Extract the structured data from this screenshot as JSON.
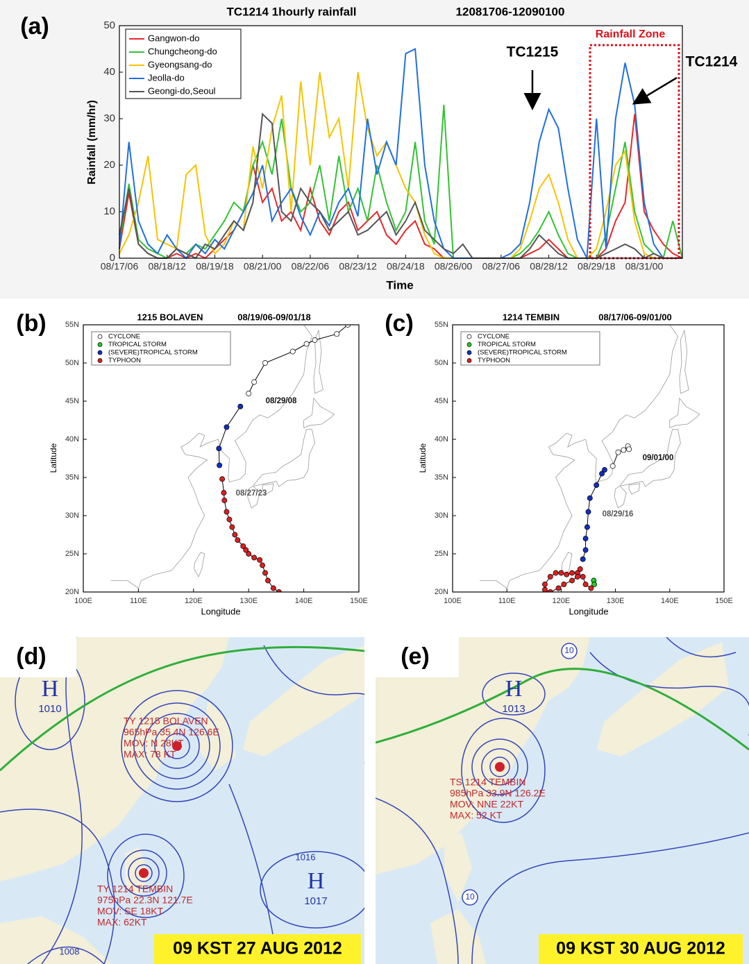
{
  "chart_data": [
    {
      "type": "line",
      "panel_label": "(a)",
      "title": "TC1214  1hourly rainfall",
      "subtitle": "12081706-12090100",
      "x_label": "Time",
      "y_label": "Rainfall (mm/hr)",
      "x": [
        0,
        6,
        12,
        18,
        24,
        30,
        36,
        42,
        48,
        54,
        60,
        66,
        72,
        78,
        84,
        90,
        96,
        102,
        108,
        114,
        120,
        126,
        132,
        138,
        144,
        150,
        156,
        162,
        168,
        174,
        180,
        186,
        192,
        198,
        204,
        210,
        216,
        222,
        228,
        234,
        240,
        246,
        252,
        258,
        264,
        270,
        276,
        282,
        288,
        294,
        300,
        306,
        312,
        318,
        324,
        330,
        336,
        342,
        348,
        354
      ],
      "xlim": [
        0,
        354
      ],
      "xticks": [
        {
          "value": 0,
          "label": "08/17/06"
        },
        {
          "value": 30,
          "label": "08/18/12"
        },
        {
          "value": 60,
          "label": "08/19/18"
        },
        {
          "value": 90,
          "label": "08/21/00"
        },
        {
          "value": 120,
          "label": "08/22/06"
        },
        {
          "value": 150,
          "label": "08/23/12"
        },
        {
          "value": 180,
          "label": "08/24/18"
        },
        {
          "value": 210,
          "label": "08/26/00"
        },
        {
          "value": 240,
          "label": "08/27/06"
        },
        {
          "value": 270,
          "label": "08/28/12"
        },
        {
          "value": 300,
          "label": "08/29/18"
        },
        {
          "value": 330,
          "label": "08/31/00"
        }
      ],
      "ylim": [
        0,
        50
      ],
      "yticks": [
        0,
        10,
        20,
        30,
        40,
        50
      ],
      "legend": "upper left",
      "series": [
        {
          "name": "Gangwon-do",
          "color": "#e8272a",
          "values": [
            2,
            14,
            3,
            1,
            0,
            0,
            1,
            0,
            1,
            0,
            2,
            4,
            6,
            10,
            20,
            12,
            15,
            8,
            10,
            6,
            15,
            8,
            5,
            10,
            12,
            6,
            8,
            10,
            5,
            3,
            6,
            8,
            3,
            2,
            0,
            0,
            0,
            0,
            0,
            0,
            0,
            0,
            0,
            1,
            2,
            4,
            2,
            0,
            0,
            0,
            0,
            2,
            8,
            12,
            31,
            10,
            6,
            3,
            1,
            0
          ]
        },
        {
          "name": "Chungcheong-do",
          "color": "#33c233",
          "values": [
            3,
            16,
            4,
            2,
            1,
            0,
            2,
            1,
            3,
            2,
            5,
            8,
            12,
            10,
            20,
            25,
            18,
            30,
            15,
            10,
            12,
            20,
            8,
            22,
            10,
            15,
            8,
            20,
            12,
            6,
            10,
            25,
            8,
            3,
            33,
            0,
            0,
            0,
            0,
            0,
            0,
            0,
            1,
            3,
            6,
            10,
            5,
            1,
            0,
            0,
            0,
            5,
            15,
            25,
            10,
            3,
            1,
            0,
            8,
            0
          ]
        },
        {
          "name": "Gyeongsang-do",
          "color": "#f5c400",
          "values": [
            1,
            5,
            12,
            22,
            4,
            3,
            2,
            18,
            20,
            5,
            1,
            3,
            8,
            6,
            24,
            15,
            28,
            35,
            10,
            38,
            20,
            40,
            26,
            30,
            15,
            40,
            28,
            22,
            25,
            20,
            15,
            12,
            5,
            1,
            0,
            0,
            0,
            0,
            0,
            0,
            0,
            0,
            2,
            8,
            15,
            18,
            12,
            4,
            0,
            0,
            2,
            10,
            20,
            23,
            8,
            1,
            0,
            0,
            0,
            0
          ]
        },
        {
          "name": "Jeolla-do",
          "color": "#1f6fe0",
          "values": [
            2,
            25,
            8,
            3,
            1,
            5,
            2,
            0,
            3,
            1,
            4,
            2,
            6,
            10,
            14,
            20,
            8,
            12,
            15,
            9,
            5,
            10,
            7,
            12,
            15,
            9,
            30,
            18,
            25,
            20,
            44,
            45,
            20,
            8,
            2,
            0,
            0,
            0,
            0,
            0,
            0,
            1,
            3,
            12,
            25,
            32,
            28,
            15,
            4,
            0,
            30,
            2,
            30,
            42,
            33,
            12,
            3,
            0,
            0,
            0
          ]
        },
        {
          "name": "Geongi-do,Seoul",
          "color": "#555555",
          "values": [
            5,
            15,
            3,
            1,
            0,
            0,
            2,
            1,
            0,
            3,
            2,
            5,
            8,
            6,
            12,
            31,
            29,
            10,
            8,
            15,
            12,
            10,
            6,
            8,
            10,
            5,
            6,
            8,
            10,
            5,
            8,
            12,
            6,
            4,
            2,
            1,
            3,
            0,
            0,
            0,
            0,
            0,
            0,
            2,
            5,
            3,
            1,
            0,
            0,
            0,
            0,
            1,
            2,
            3,
            2,
            0,
            1,
            0,
            0,
            0
          ]
        }
      ],
      "annotations": [
        "TC1215",
        "TC1214",
        "Rainfall Zone"
      ]
    },
    {
      "type": "track",
      "panel_label": "(b)",
      "title": "1215 BOLAVEN",
      "subtitle": "08/19/06-09/01/18",
      "x_label": "Longitude",
      "y_label": "Latitude",
      "xlim": [
        100,
        150
      ],
      "ylim": [
        20,
        55
      ],
      "xticks": [
        {
          "value": 100,
          "label": "100E"
        },
        {
          "value": 110,
          "label": "110E"
        },
        {
          "value": 120,
          "label": "120E"
        },
        {
          "value": 130,
          "label": "130E"
        },
        {
          "value": 140,
          "label": "140E"
        },
        {
          "value": 150,
          "label": "150E"
        }
      ],
      "yticks": [
        {
          "value": 20,
          "label": "20N"
        },
        {
          "value": 25,
          "label": "25N"
        },
        {
          "value": 30,
          "label": "30N"
        },
        {
          "value": 35,
          "label": "35N"
        },
        {
          "value": 40,
          "label": "40N"
        },
        {
          "value": 45,
          "label": "45N"
        },
        {
          "value": 50,
          "label": "50N"
        },
        {
          "value": 55,
          "label": "55N"
        }
      ],
      "legend": "upper left",
      "series": [
        {
          "name": "CYCLONE",
          "color": "#ffffff",
          "x": [
            130,
            131,
            133,
            138,
            140.5,
            142,
            146,
            148
          ],
          "y": [
            46,
            47.5,
            50,
            51.5,
            52.5,
            53,
            53.8,
            55
          ]
        },
        {
          "name": "TROPICAL STORM",
          "color": "#22cc22",
          "x": [],
          "y": []
        },
        {
          "name": "(SEVERE)TROPICAL STORM",
          "color": "#1030c0",
          "x": [
            124.7,
            124.6,
            126,
            128.5
          ],
          "y": [
            36.6,
            38.8,
            41.6,
            44.3
          ]
        },
        {
          "name": "TYPHOON",
          "color": "#dd1f1f",
          "x": [
            135.5,
            134.5,
            133.5,
            133,
            132.5,
            132,
            131,
            130,
            129.5,
            129,
            128,
            127.5,
            127,
            126.5,
            126,
            125.6,
            125.5,
            125.2
          ],
          "y": [
            20,
            20.5,
            21.5,
            22.5,
            23.5,
            24.2,
            24.5,
            25,
            25.5,
            26,
            26.8,
            27.5,
            28.5,
            29.5,
            30.5,
            32,
            33,
            34.8
          ]
        }
      ],
      "annotations": [
        "08/29/08",
        "08/27/23"
      ]
    },
    {
      "type": "track",
      "panel_label": "(c)",
      "title": "1214 TEMBIN",
      "subtitle": "08/17/06-09/01/00",
      "x_label": "Longitude",
      "y_label": "Latitude",
      "xlim": [
        100,
        150
      ],
      "ylim": [
        20,
        55
      ],
      "xticks": [
        {
          "value": 100,
          "label": "100E"
        },
        {
          "value": 110,
          "label": "110E"
        },
        {
          "value": 120,
          "label": "120E"
        },
        {
          "value": 130,
          "label": "130E"
        },
        {
          "value": 140,
          "label": "140E"
        },
        {
          "value": 150,
          "label": "150E"
        }
      ],
      "yticks": [
        {
          "value": 20,
          "label": "20N"
        },
        {
          "value": 25,
          "label": "25N"
        },
        {
          "value": 30,
          "label": "30N"
        },
        {
          "value": 35,
          "label": "35N"
        },
        {
          "value": 40,
          "label": "40N"
        },
        {
          "value": 45,
          "label": "45N"
        },
        {
          "value": 50,
          "label": "50N"
        },
        {
          "value": 55,
          "label": "55N"
        }
      ],
      "legend": "upper left",
      "series": [
        {
          "name": "CYCLONE",
          "color": "#ffffff",
          "x": [
            129.5,
            130.5,
            131.5,
            132.3,
            132.5
          ],
          "y": [
            36.5,
            38.3,
            38.6,
            39.1,
            38.7
          ]
        },
        {
          "name": "TROPICAL STORM",
          "color": "#22cc22",
          "x": [
            126,
            126.1
          ],
          "y": [
            21.5,
            21
          ]
        },
        {
          "name": "(SEVERE)TROPICAL STORM",
          "color": "#1030c0",
          "x": [
            124,
            124.5,
            124.5,
            124.8,
            125,
            125.3,
            126.5,
            127.5,
            128
          ],
          "y": [
            24.3,
            25.5,
            27,
            28.5,
            30.5,
            32.3,
            34,
            35.5,
            36
          ]
        },
        {
          "name": "TYPHOON",
          "color": "#dd1f1f",
          "x": [
            125.5,
            124.5,
            124,
            123,
            122,
            121,
            120,
            119,
            118,
            117,
            117,
            118,
            119.5,
            120.5,
            122,
            123,
            123.5
          ],
          "y": [
            20.5,
            21,
            22,
            22.5,
            22.5,
            22.3,
            22.5,
            22.5,
            22,
            21,
            20.3,
            20,
            20.5,
            21,
            21.5,
            22,
            23
          ]
        }
      ],
      "annotations": [
        "09/01/00",
        "08/29/16"
      ]
    }
  ],
  "weather_maps": [
    {
      "panel_label": "(d)",
      "date": "09 KST 27 AUG 2012",
      "typhoons": [
        [
          "TY 1215 BOLAVEN",
          "965hPa 35.4N 126.6E",
          "MOV: N 28KT",
          "MAX: 78 KT"
        ],
        [
          "TY 1214 TEMBIN",
          "975hPa 22.3N 121.7E",
          "MOV: SE 18KT",
          "MAX: 62KT"
        ]
      ],
      "highs": [
        {
          "symbol": "H",
          "pressure": "1010"
        },
        {
          "symbol": "H",
          "pressure": "1017"
        }
      ],
      "isobars": [
        "1016",
        "1008"
      ]
    },
    {
      "panel_label": "(e)",
      "date": "09 KST 30 AUG 2012",
      "typhoons": [
        [
          "TS 1214 TEMBIN",
          "985hPa 33.9N 126.2E",
          "MOV: NNE 22KT",
          "MAX: 52 KT"
        ]
      ],
      "highs": [
        {
          "symbol": "H",
          "pressure": "1013"
        }
      ],
      "isobars": [
        "10",
        "10"
      ]
    }
  ]
}
